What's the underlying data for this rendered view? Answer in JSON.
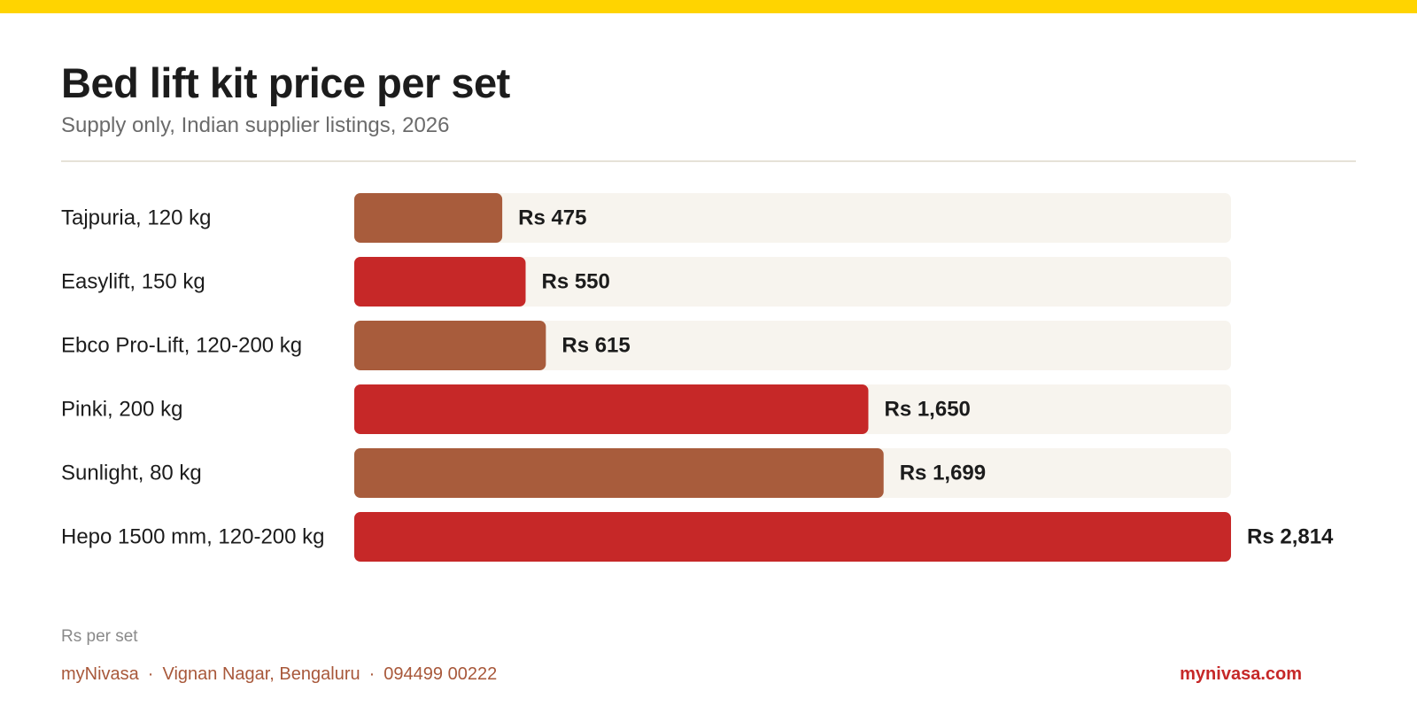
{
  "header": {
    "title": "Bed lift kit price per set",
    "subtitle": "Supply only, Indian supplier listings, 2026"
  },
  "chart_data": {
    "type": "bar",
    "orientation": "horizontal",
    "categories": [
      "Tajpuria, 120 kg",
      "Easylift, 150 kg",
      "Ebco Pro-Lift, 120-200 kg",
      "Pinki, 200 kg",
      "Sunlight, 80 kg",
      "Hepo 1500 mm, 120-200 kg"
    ],
    "values": [
      475,
      550,
      615,
      1650,
      1699,
      2814
    ],
    "value_labels": [
      "Rs 475",
      "Rs 550",
      "Rs 615",
      "Rs 1,650",
      "Rs 1,699",
      "Rs 2,814"
    ],
    "xlim": [
      0,
      2814
    ],
    "grid": false,
    "colors": [
      "#A85C3C",
      "#C62828",
      "#A85C3C",
      "#C62828",
      "#A85C3C",
      "#C62828"
    ],
    "track_color": "#F7F4EE"
  },
  "footer": {
    "unit_note": "Rs per set",
    "brand": "myNivasa",
    "location": "Vignan Nagar, Bengaluru",
    "phone": "094499 00222",
    "separator": "·",
    "website": "mynivasa.com"
  },
  "colors": {
    "top_bar": "#FFD400",
    "footer_text": "#A8583A",
    "website": "#C62828"
  }
}
